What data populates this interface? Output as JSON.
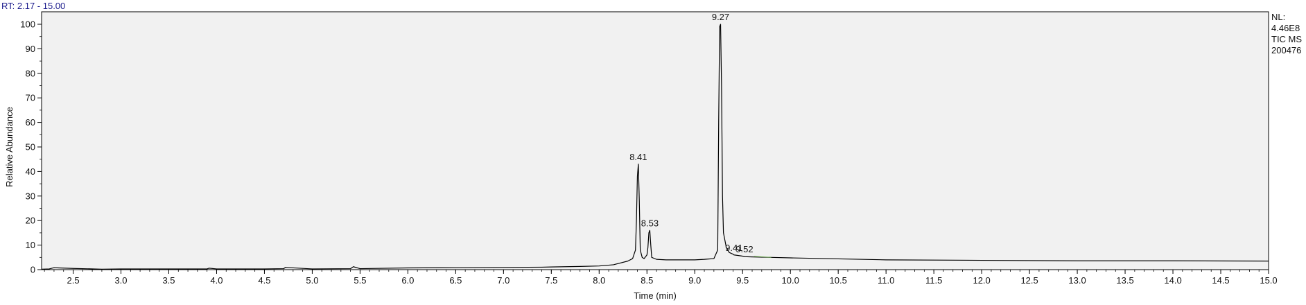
{
  "header": {
    "rt_range": "RT: 2.17 - 15.00"
  },
  "info_box": {
    "lines": [
      "NL:",
      "4.46E8",
      "TIC  MS",
      "200476"
    ]
  },
  "colors": {
    "plot_bg": "#f1f1f1",
    "trace": "#000000",
    "rt_text": "#1a1a8c",
    "baseline_marker": "#6aa84f"
  },
  "chart_data": {
    "type": "line",
    "xlabel": "Time (min)",
    "ylabel": "Relative Abundance",
    "xlim": [
      2.17,
      15.0
    ],
    "ylim": [
      0,
      100
    ],
    "x_ticks": [
      "2.5",
      "3.0",
      "3.5",
      "4.0",
      "4.5",
      "5.0",
      "5.5",
      "6.0",
      "6.5",
      "7.0",
      "7.5",
      "8.0",
      "8.5",
      "9.0",
      "9.5",
      "10.0",
      "10.5",
      "11.0",
      "11.5",
      "12.0",
      "12.5",
      "13.0",
      "13.5",
      "14.0",
      "14.5",
      "15.0"
    ],
    "y_ticks": [
      "0",
      "10",
      "20",
      "30",
      "40",
      "50",
      "60",
      "70",
      "80",
      "90",
      "100"
    ],
    "grid": false,
    "series": [
      {
        "x": [
          2.17,
          2.25,
          2.3,
          2.35,
          2.5,
          2.8,
          3.0,
          3.5,
          3.9,
          3.92,
          4.0,
          4.5,
          4.7,
          4.72,
          5.0,
          5.4,
          5.43,
          5.5,
          6.0,
          6.5,
          7.0,
          7.4,
          7.5,
          7.8,
          8.0,
          8.15,
          8.2,
          8.3,
          8.35,
          8.38,
          8.39,
          8.4,
          8.41,
          8.42,
          8.43,
          8.45,
          8.47,
          8.5,
          8.51,
          8.52,
          8.53,
          8.54,
          8.55,
          8.6,
          8.7,
          8.8,
          8.9,
          9.0,
          9.1,
          9.2,
          9.24,
          9.25,
          9.26,
          9.27,
          9.28,
          9.29,
          9.3,
          9.33,
          9.36,
          9.4,
          9.41,
          9.45,
          9.5,
          9.52,
          9.6,
          9.8,
          10.0,
          10.5,
          11.0,
          12.0,
          13.0,
          14.0,
          15.0
        ],
        "y": [
          0.2,
          0.3,
          0.8,
          0.7,
          0.5,
          0.2,
          0.3,
          0.3,
          0.3,
          0.6,
          0.3,
          0.3,
          0.4,
          0.9,
          0.3,
          0.4,
          1.2,
          0.4,
          0.7,
          0.8,
          0.9,
          1.0,
          1.1,
          1.3,
          1.5,
          2.0,
          2.5,
          3.5,
          4.5,
          8.0,
          20.0,
          38.0,
          43.0,
          28.0,
          8.0,
          5.0,
          4.5,
          6.0,
          9.0,
          15.0,
          16.0,
          10.0,
          5.0,
          4.2,
          4.0,
          4.0,
          4.0,
          4.0,
          4.2,
          4.5,
          8.0,
          60.0,
          99.0,
          100.0,
          75.0,
          30.0,
          15.0,
          9.0,
          7.0,
          6.3,
          6.0,
          5.8,
          5.5,
          5.3,
          5.2,
          5.0,
          4.8,
          4.4,
          4.0,
          3.8,
          3.6,
          3.6,
          3.5
        ]
      }
    ],
    "peaks": [
      {
        "x": 8.41,
        "y": 43,
        "label": "8.41"
      },
      {
        "x": 8.53,
        "y": 16,
        "label": "8.53"
      },
      {
        "x": 9.27,
        "y": 100,
        "label": "9.27"
      },
      {
        "x": 9.41,
        "y": 6.0,
        "label": "9.41"
      },
      {
        "x": 9.52,
        "y": 5.3,
        "label": "9.52"
      }
    ]
  }
}
